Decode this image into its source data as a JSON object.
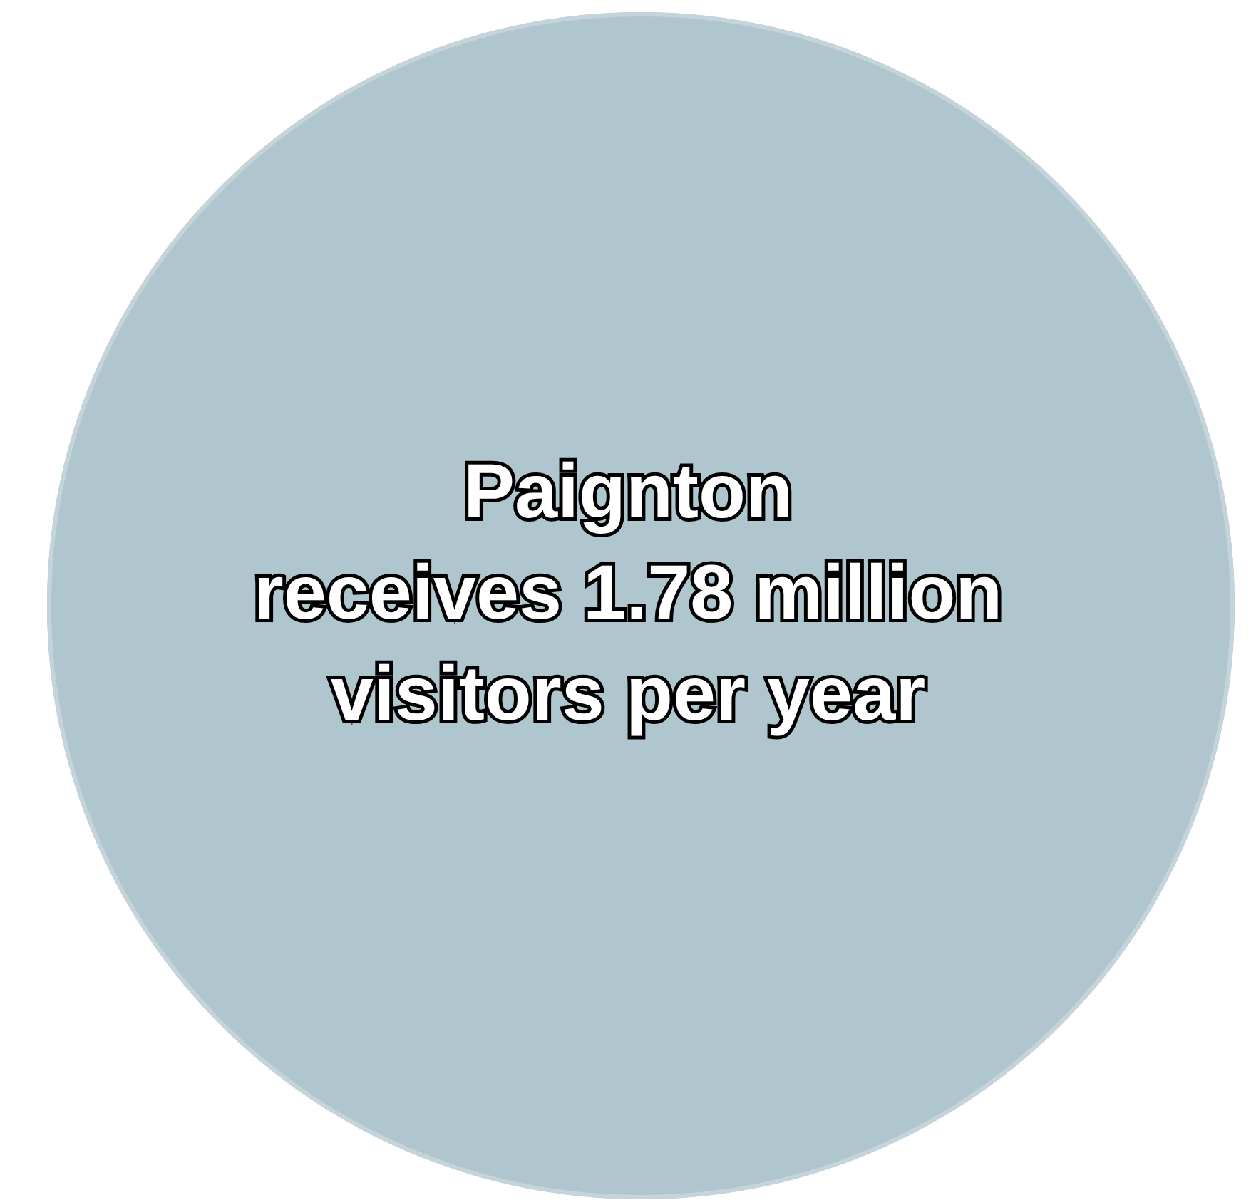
{
  "chart_data": {
    "type": "other",
    "categories": [
      "Paignton"
    ],
    "values": [
      1.78
    ],
    "data_labels": true,
    "annotations": [
      "receives",
      "million",
      "visitors per year"
    ],
    "color": "#afc6cf"
  }
}
